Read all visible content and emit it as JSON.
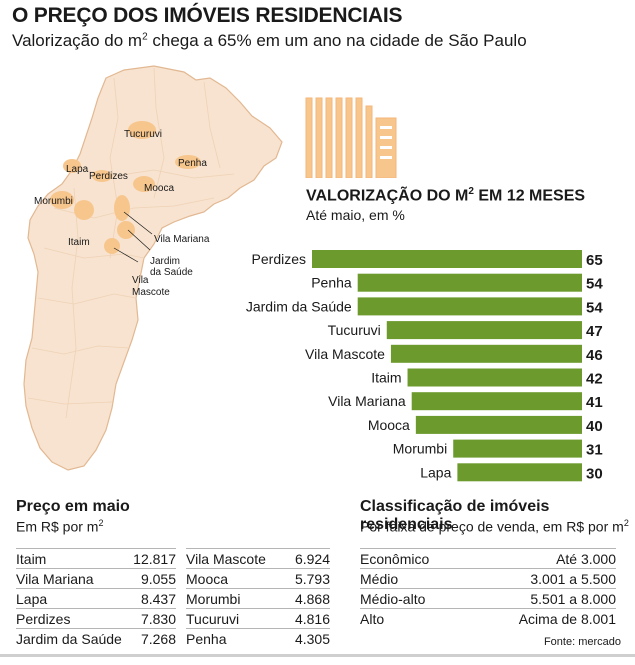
{
  "header": {
    "title": "O PREÇO DOS IMÓVEIS RESIDENCIAIS",
    "subtitle_pre": "Valorização do m",
    "subtitle_sup": "2",
    "subtitle_post": " chega a 65% em um ano na cidade de São Paulo"
  },
  "map": {
    "labels": [
      "Tucuruvi",
      "Penha",
      "Lapa",
      "Perdizes",
      "Mooca",
      "Morumbi",
      "Itaim",
      "Vila Mariana",
      "Jardim",
      "da Saúde",
      "Vila",
      "Mascote"
    ],
    "colors": {
      "city": "#f7e3cf",
      "district": "#f7c68d",
      "border": "#e2b892"
    }
  },
  "chart_data": {
    "type": "bar",
    "orientation": "horizontal",
    "title_pre": "VALORIZAÇÃO DO M",
    "title_sup": "2",
    "title_post": " EM 12 MESES",
    "subtitle": "Até maio, em %",
    "categories": [
      "Perdizes",
      "Penha",
      "Jardim da Saúde",
      "Tucuruvi",
      "Vila Mascote",
      "Itaim",
      "Vila Mariana",
      "Mooca",
      "Morumbi",
      "Lapa"
    ],
    "values": [
      65,
      54,
      54,
      47,
      46,
      42,
      41,
      40,
      31,
      30
    ],
    "xlim": [
      0,
      65
    ],
    "bar_color": "#6c9a2d",
    "grid": false
  },
  "prices": {
    "title": "Preço em maio",
    "subtitle_pre": "Em R$ por m",
    "subtitle_sup": "2",
    "left": [
      {
        "name": "Itaim",
        "value": "12.817"
      },
      {
        "name": "Vila Mariana",
        "value": "9.055"
      },
      {
        "name": "Lapa",
        "value": "8.437"
      },
      {
        "name": "Perdizes",
        "value": "7.830"
      },
      {
        "name": "Jardim da Saúde",
        "value": "7.268"
      }
    ],
    "right": [
      {
        "name": "Vila Mascote",
        "value": "6.924"
      },
      {
        "name": "Mooca",
        "value": "5.793"
      },
      {
        "name": "Morumbi",
        "value": "4.868"
      },
      {
        "name": "Tucuruvi",
        "value": "4.816"
      },
      {
        "name": "Penha",
        "value": "4.305"
      }
    ]
  },
  "classification": {
    "title": "Classificação de imóveis residenciais",
    "subtitle_pre": "Por faixa de preço de venda, em R$ por m",
    "subtitle_sup": "2",
    "rows": [
      {
        "name": "Econômico",
        "value": "Até 3.000"
      },
      {
        "name": "Médio",
        "value": "3.001 a 5.500"
      },
      {
        "name": "Médio-alto",
        "value": "5.501 a 8.000"
      },
      {
        "name": "Alto",
        "value": "Acima de 8.001"
      }
    ]
  },
  "source": "Fonte: mercado"
}
